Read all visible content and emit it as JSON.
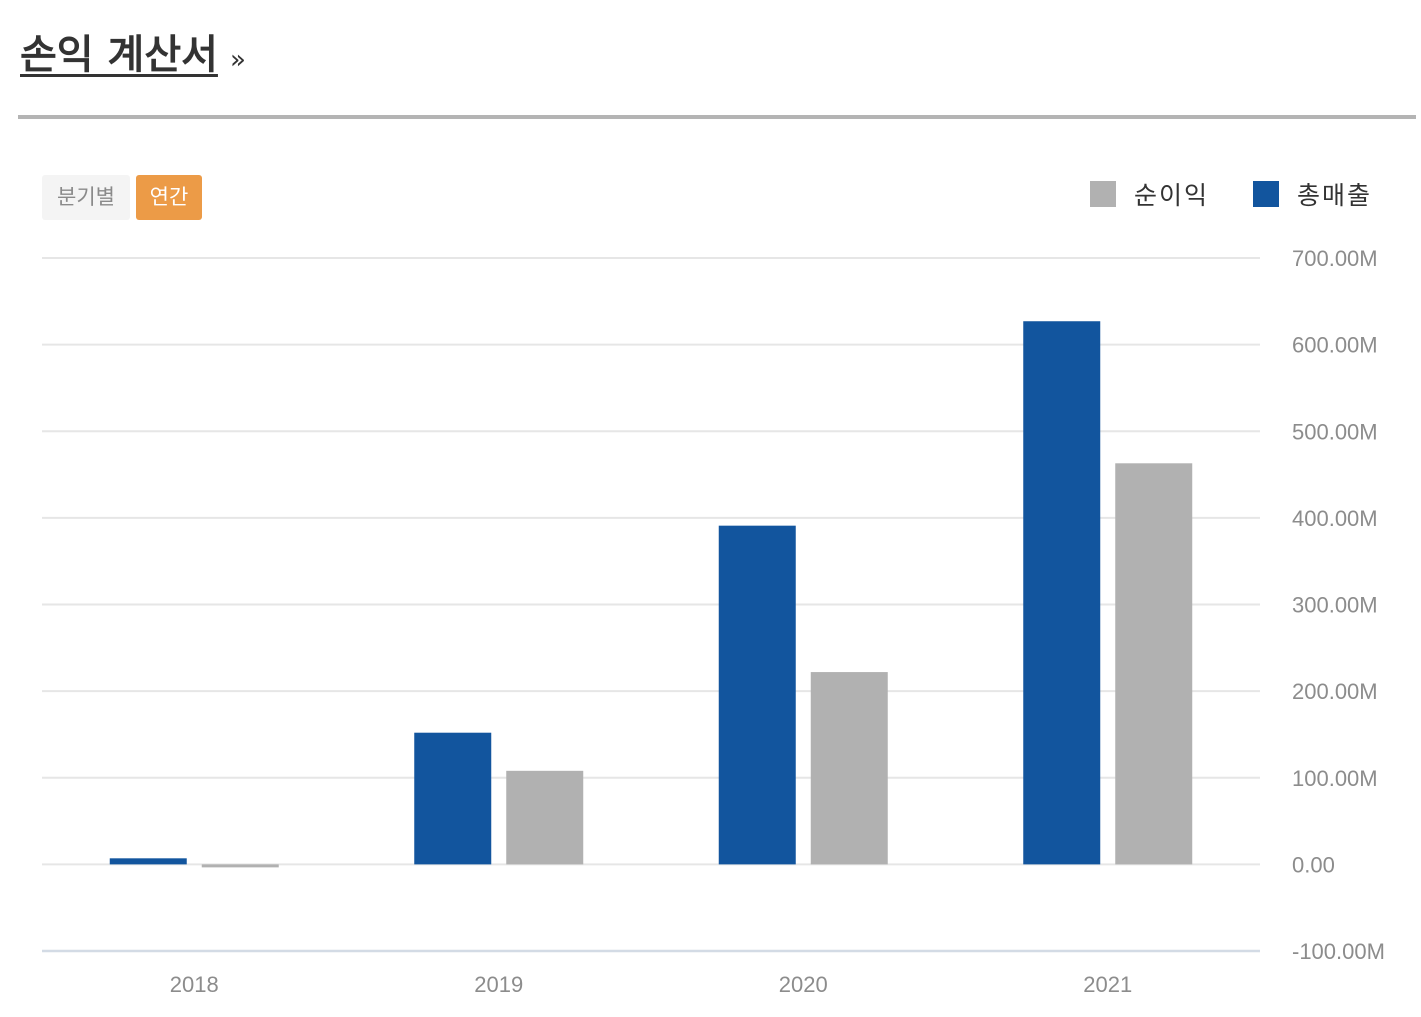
{
  "header": {
    "title": "손익 계산서",
    "arrow": "»"
  },
  "toggles": {
    "quarterly": "분기별",
    "annual": "연간",
    "active": "annual"
  },
  "colors": {
    "revenue": "#12559e",
    "net_income": "#b1b1b1",
    "active_toggle": "#ec9b47",
    "grid": "#e6e6e6",
    "baseline_axis": "#d3dbe5"
  },
  "chart_data": {
    "type": "bar",
    "categories": [
      "2018",
      "2019",
      "2020",
      "2021"
    ],
    "series": [
      {
        "name": "총매출",
        "values": [
          7,
          152,
          391,
          627
        ]
      },
      {
        "name": "순이익",
        "values": [
          -3,
          108,
          222,
          463
        ]
      }
    ],
    "legend": [
      "순이익",
      "총매출"
    ],
    "legend_placement": "top-right",
    "y_ticks": [
      {
        "value": 700,
        "label": "700.00M"
      },
      {
        "value": 600,
        "label": "600.00M"
      },
      {
        "value": 500,
        "label": "500.00M"
      },
      {
        "value": 400,
        "label": "400.00M"
      },
      {
        "value": 300,
        "label": "300.00M"
      },
      {
        "value": 200,
        "label": "200.00M"
      },
      {
        "value": 100,
        "label": "100.00M"
      },
      {
        "value": 0,
        "label": "0.00"
      },
      {
        "value": -100,
        "label": "-100.00M"
      }
    ],
    "ylim": [
      -100,
      700
    ],
    "y_unit": "M",
    "y_axis_position": "right",
    "grid": true
  }
}
